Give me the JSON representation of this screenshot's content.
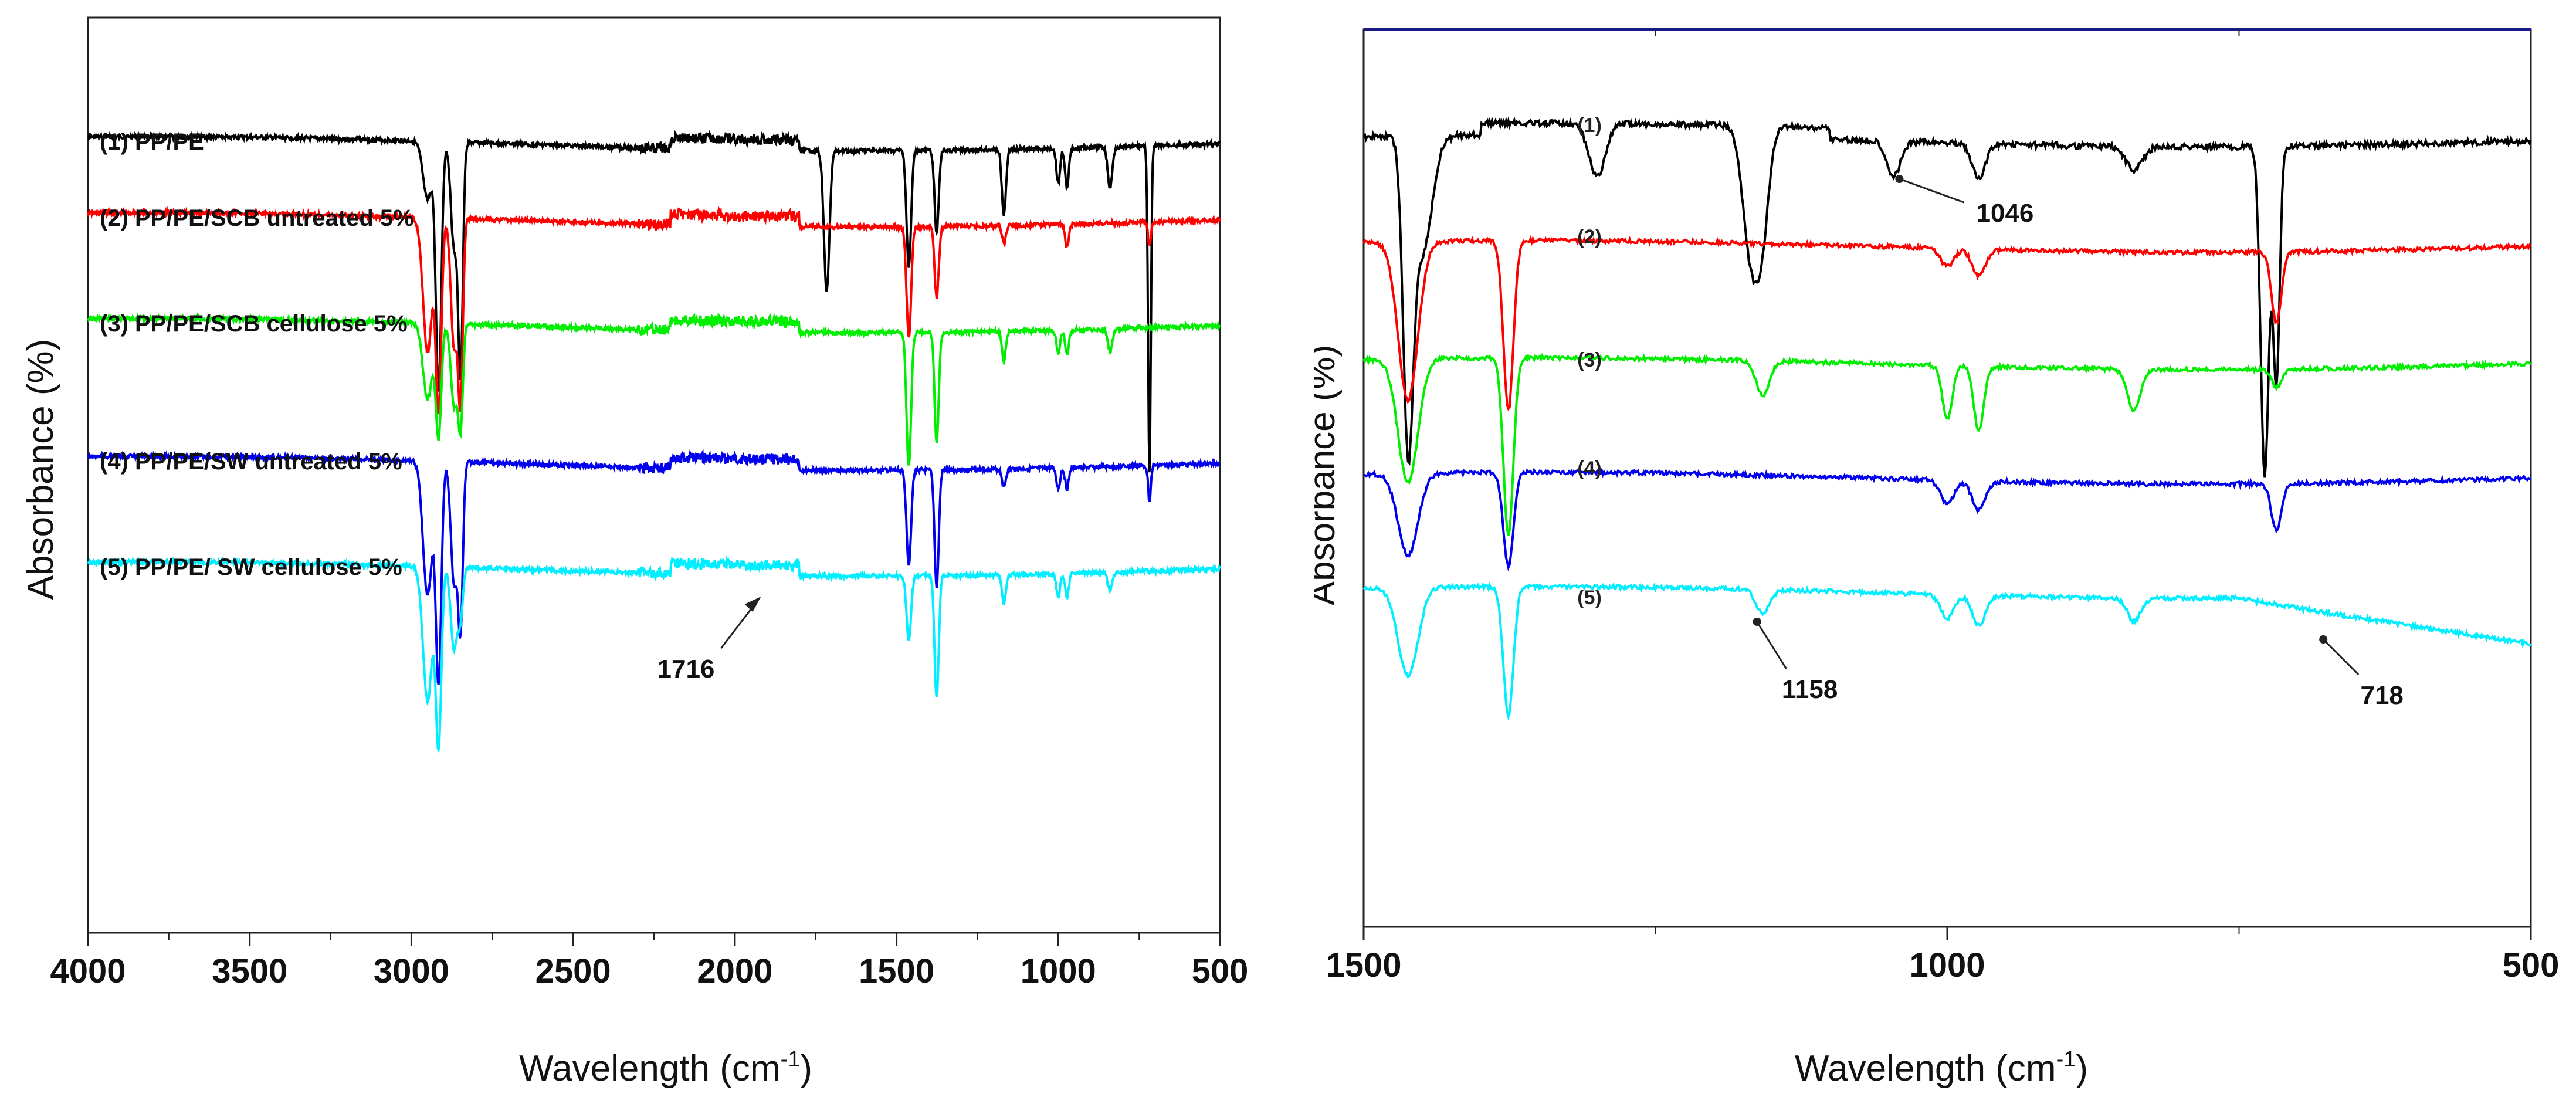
{
  "chart_data": [
    {
      "type": "line",
      "title": "",
      "xlabel": "Wavelength (cm",
      "xlabel_sup": "-1",
      "xlabel_close": ")",
      "ylabel": "Absorbance (%)",
      "xlim": [
        4000,
        500
      ],
      "xticks": [
        "4000",
        "3500",
        "3000",
        "2500",
        "2000",
        "1500",
        "1000",
        "500"
      ],
      "grid": false,
      "series": [
        {
          "name": "(1) PP/PE",
          "color": "#000000",
          "offset": 0
        },
        {
          "name": "(2) PP/PE/SCB untreated 5%",
          "color": "#ff0000",
          "offset": 1
        },
        {
          "name": "(3) PP/PE/SCB cellulose 5%",
          "color": "#00ee00",
          "offset": 2
        },
        {
          "name": "(4) PP/PE/SW untreated 5%",
          "color": "#0000ee",
          "offset": 3
        },
        {
          "name": "(5) PP/PE/ SW cellulose 5%",
          "color": "#00eeff",
          "offset": 4
        }
      ],
      "peaks_cm1": [
        2950,
        2916,
        2868,
        2848,
        1716,
        1462,
        1376,
        1168,
        1000,
        973,
        840,
        718
      ],
      "annotations": [
        {
          "text": "1716",
          "x": 1716
        }
      ]
    },
    {
      "type": "line",
      "title": "",
      "xlabel": "Wavelength (cm",
      "xlabel_sup": "-1",
      "xlabel_close": ")",
      "ylabel": "Absorbance (%)",
      "xlim": [
        1500,
        500
      ],
      "xticks": [
        "1500",
        "1000",
        "500"
      ],
      "grid": false,
      "series": [
        {
          "name": "(1)",
          "color": "#000000",
          "offset": 0
        },
        {
          "name": "(2)",
          "color": "#ff0000",
          "offset": 1
        },
        {
          "name": "(3)",
          "color": "#00ee00",
          "offset": 2
        },
        {
          "name": "(4)",
          "color": "#0000ee",
          "offset": 3
        },
        {
          "name": "(5)",
          "color": "#00eeff",
          "offset": 4
        }
      ],
      "peaks_cm1": [
        1462,
        1376,
        1158,
        1046,
        1000,
        973,
        840,
        718
      ],
      "annotations": [
        {
          "text": "1046",
          "x": 1046
        },
        {
          "text": "1158",
          "x": 1158
        },
        {
          "text": "718",
          "x": 718
        }
      ]
    }
  ]
}
